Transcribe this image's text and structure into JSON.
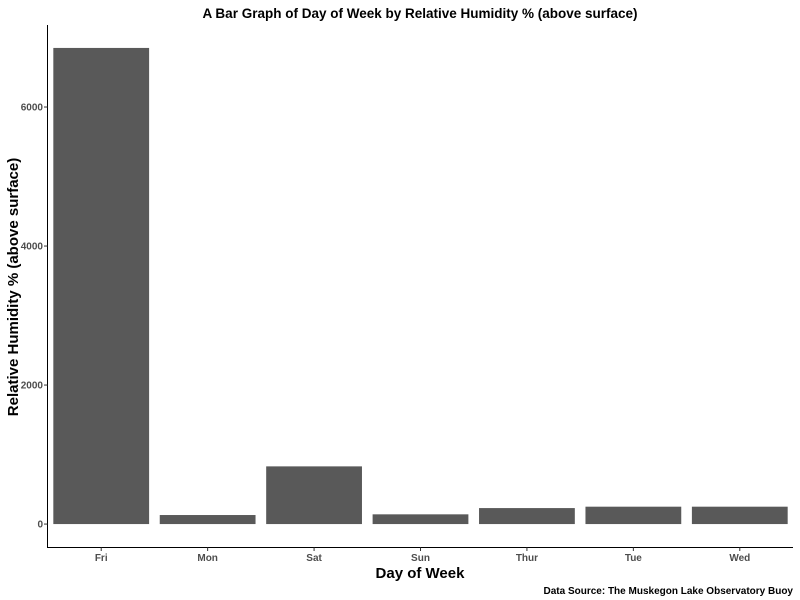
{
  "chart_data": {
    "type": "bar",
    "title": "A Bar Graph of Day of Week by Relative Humidity % (above surface)",
    "xlabel": "Day of Week",
    "ylabel": "Relative Humidity % (above surface)",
    "caption": "Data Source: The Muskegon Lake Observatory Buoy",
    "categories": [
      "Fri",
      "Mon",
      "Sat",
      "Sun",
      "Thur",
      "Tue",
      "Wed"
    ],
    "values": [
      6850,
      130,
      830,
      140,
      230,
      250,
      250
    ],
    "ylim": [
      -330,
      7180
    ],
    "yticks": [
      0,
      2000,
      4000,
      6000
    ],
    "grid": false,
    "bar_color": "#595959"
  }
}
